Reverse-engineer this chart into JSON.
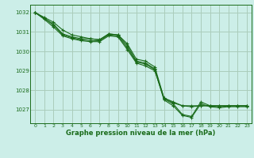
{
  "title": "Graphe pression niveau de la mer (hPa)",
  "background_color": "#cceee8",
  "grid_color": "#aaccbb",
  "line_color": "#1a6b1a",
  "xlim": [
    -0.5,
    23.5
  ],
  "ylim": [
    1026.3,
    1032.4
  ],
  "yticks": [
    1027,
    1028,
    1029,
    1030,
    1031,
    1032
  ],
  "xticks": [
    0,
    1,
    2,
    3,
    4,
    5,
    6,
    7,
    8,
    9,
    10,
    11,
    12,
    13,
    14,
    15,
    16,
    17,
    18,
    19,
    20,
    21,
    22,
    23
  ],
  "series": [
    [
      1032.0,
      1031.75,
      1031.5,
      1031.1,
      1030.85,
      1030.75,
      1030.65,
      1030.6,
      1030.9,
      1030.85,
      1030.4,
      1029.6,
      1029.5,
      1029.2,
      1027.6,
      1027.4,
      1027.2,
      1027.2,
      1027.2,
      1027.2,
      1027.2,
      1027.2,
      1027.2,
      1027.2
    ],
    [
      1032.0,
      1031.7,
      1031.4,
      1030.9,
      1030.75,
      1030.65,
      1030.65,
      1030.6,
      1030.9,
      1030.85,
      1030.3,
      1029.5,
      1029.4,
      1029.1,
      1027.55,
      1027.3,
      1026.75,
      1026.65,
      1027.4,
      1027.2,
      1027.15,
      1027.2,
      1027.2,
      1027.2
    ],
    [
      1032.0,
      1031.7,
      1031.35,
      1030.85,
      1030.7,
      1030.6,
      1030.55,
      1030.55,
      1030.85,
      1030.8,
      1030.2,
      1029.45,
      1029.35,
      1029.05,
      1027.5,
      1027.2,
      1026.7,
      1026.6,
      1027.3,
      1027.15,
      1027.1,
      1027.15,
      1027.15,
      1027.15
    ],
    [
      1032.0,
      1031.65,
      1031.25,
      1030.8,
      1030.65,
      1030.55,
      1030.5,
      1030.5,
      1030.8,
      1030.75,
      1030.1,
      1029.4,
      1029.25,
      1029.0,
      1027.6,
      1027.35,
      1027.2,
      1027.15,
      1027.2,
      1027.2,
      1027.2,
      1027.2,
      1027.2,
      1027.2
    ]
  ]
}
